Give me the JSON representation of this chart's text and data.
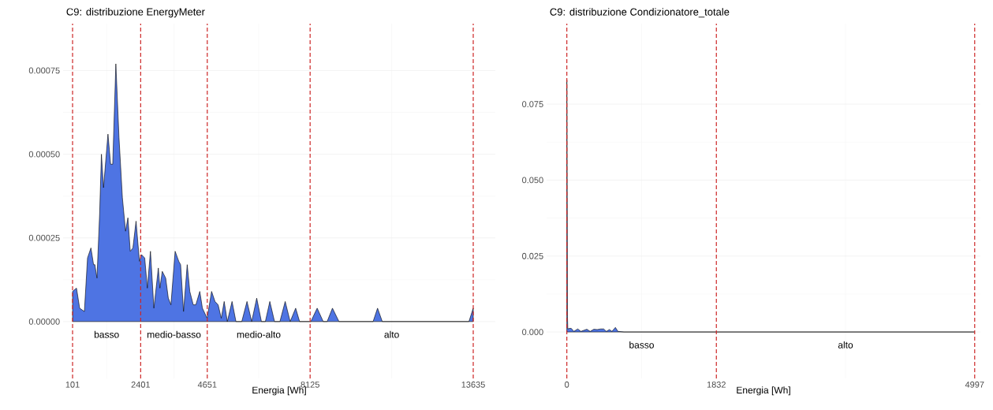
{
  "chart_data": [
    {
      "type": "area",
      "title": "C9: distribuzione EnergyMeter",
      "xlabel": "Energia [Wh]",
      "color": "#4e74e3",
      "grid": true,
      "x": [
        101,
        234,
        340,
        500,
        606,
        721,
        810,
        854,
        925,
        1014,
        1076,
        1146,
        1297,
        1386,
        1457,
        1563,
        1669,
        1784,
        1891,
        1970,
        2050,
        2139,
        2245,
        2360,
        2431,
        2538,
        2626,
        2732,
        2848,
        2998,
        3051,
        3131,
        3246,
        3335,
        3423,
        3565,
        3689,
        3751,
        3849,
        3973,
        4061,
        4177,
        4265,
        4398,
        4487,
        4646,
        4797,
        4912,
        5018,
        5124,
        5222,
        5328,
        5488,
        5620,
        5816,
        5993,
        6152,
        6321,
        6480,
        6613,
        6764,
        6923,
        7104,
        7283,
        7451,
        7637,
        7770,
        8150,
        8363,
        8568,
        8700,
        8879,
        9100,
        10252,
        10403,
        10563,
        13489,
        13635
      ],
      "values": [
        9e-05,
        0.0001,
        4e-05,
        3e-05,
        0.00019,
        0.00022,
        0.00017,
        0.00017,
        0.00013,
        0.00032,
        0.0005,
        0.0004,
        0.00056,
        0.00047,
        0.00047,
        0.00077,
        0.00055,
        0.00037,
        0.00027,
        0.00031,
        0.00021,
        0.00022,
        0.0003,
        0.00018,
        0.0002,
        0.00019,
        0.0001,
        0.00021,
        4e-05,
        0.00016,
        0.0001,
        0.00015,
        0.00013,
        7e-05,
        5e-05,
        0.00021,
        0.00018,
        0.00017,
        3e-05,
        0.00017,
        9e-05,
        5e-05,
        5e-05,
        9e-05,
        4e-05,
        1e-05,
        9e-05,
        6e-05,
        5e-05,
        1e-05,
        6e-05,
        0,
        6e-05,
        0,
        0,
        6e-05,
        0,
        7e-05,
        0,
        0,
        6e-05,
        0,
        0,
        6e-05,
        0,
        4e-05,
        0,
        0,
        4e-05,
        0,
        0,
        4e-05,
        0,
        0,
        4e-05,
        0,
        0,
        4e-05
      ],
      "xlim": [
        -219,
        14381
      ],
      "ylim": [
        -0.00017,
        0.00089
      ],
      "xticks": [
        101,
        2401,
        4651,
        8125,
        13635
      ],
      "yticks": [
        {
          "value": 0,
          "label": "0.00000"
        },
        {
          "value": 0.00025,
          "label": "0.00025"
        },
        {
          "value": 0.0005,
          "label": "0.00050"
        },
        {
          "value": 0.00075,
          "label": "0.00075"
        }
      ],
      "ref_lines": [
        {
          "axis": "x",
          "value": 101,
          "color": "#cd2626",
          "line_style": "dashed"
        },
        {
          "axis": "x",
          "value": 2401,
          "color": "#cd2626",
          "line_style": "dashed"
        },
        {
          "axis": "x",
          "value": 4651,
          "color": "#cd2626",
          "line_style": "dashed"
        },
        {
          "axis": "x",
          "value": 8125,
          "color": "#cd2626",
          "line_style": "dashed"
        },
        {
          "axis": "x",
          "value": 13635,
          "color": "#cd2626",
          "line_style": "dashed"
        }
      ],
      "annotations": [
        "basso",
        "medio-basso",
        "medio-alto",
        "alto"
      ]
    },
    {
      "type": "area",
      "title": "C9: distribuzione Condizionatore_totale",
      "xlabel": "Energia [Wh]",
      "color": "#4e74e3",
      "grid": true,
      "x": [
        0,
        5,
        8,
        12,
        30,
        54,
        86,
        134,
        172,
        245,
        286,
        331,
        372,
        414,
        452,
        484,
        522,
        553,
        595,
        626,
        700,
        4997
      ],
      "values": [
        0.083,
        0.0395,
        0.005,
        0.001,
        0.0012,
        0.0012,
        0.0002,
        0.001,
        0.0002,
        0.0009,
        0.0002,
        0.0009,
        0.0008,
        0.001,
        0.001,
        0.0002,
        0.0008,
        0.0002,
        0.0015,
        0.0002,
        0,
        0
      ],
      "xlim": [
        -248,
        5067
      ],
      "ylim": [
        -0.0153,
        0.1015
      ],
      "xticks": [
        0,
        1832,
        4997
      ],
      "yticks": [
        {
          "value": 0,
          "label": "0.000"
        },
        {
          "value": 0.025,
          "label": "0.025"
        },
        {
          "value": 0.05,
          "label": "0.050"
        },
        {
          "value": 0.075,
          "label": "0.075"
        }
      ],
      "ref_lines": [
        {
          "axis": "x",
          "value": 0,
          "color": "#cd2626",
          "line_style": "dashed"
        },
        {
          "axis": "x",
          "value": 1832,
          "color": "#cd2626",
          "line_style": "dashed"
        },
        {
          "axis": "x",
          "value": 4997,
          "color": "#cd2626",
          "line_style": "dashed"
        }
      ],
      "annotations": [
        "basso",
        "alto"
      ]
    }
  ]
}
